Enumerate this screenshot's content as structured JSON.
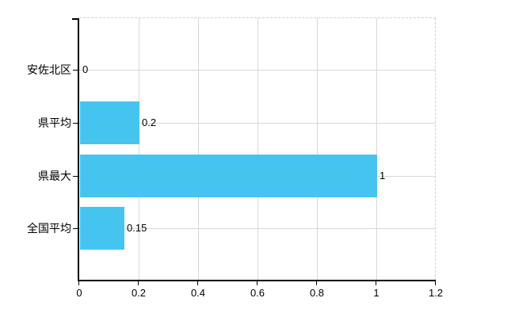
{
  "chart_data": {
    "type": "bar",
    "orientation": "horizontal",
    "title": "",
    "xlabel": "",
    "ylabel": "",
    "categories": [
      "安佐北区",
      "県平均",
      "県最大",
      "全国平均"
    ],
    "values": [
      0,
      0.2,
      1,
      0.15
    ],
    "value_labels": [
      "0",
      "0.2",
      "1",
      "0.15"
    ],
    "x_ticks": [
      0,
      0.2,
      0.4,
      0.6,
      0.8,
      1,
      1.2
    ],
    "x_tick_labels": [
      "0",
      "0.2",
      "0.4",
      "0.6",
      "0.8",
      "1",
      "1.2"
    ],
    "xlim": [
      0,
      1.2
    ],
    "grid": "on",
    "legend": "none",
    "colors": {
      "bar_fill": "#46C4F0",
      "gridline": "#d8d8d8",
      "dashed_border": "#cfcfcf",
      "axis": "#000000",
      "text": "#000000",
      "background": "#ffffff"
    }
  }
}
